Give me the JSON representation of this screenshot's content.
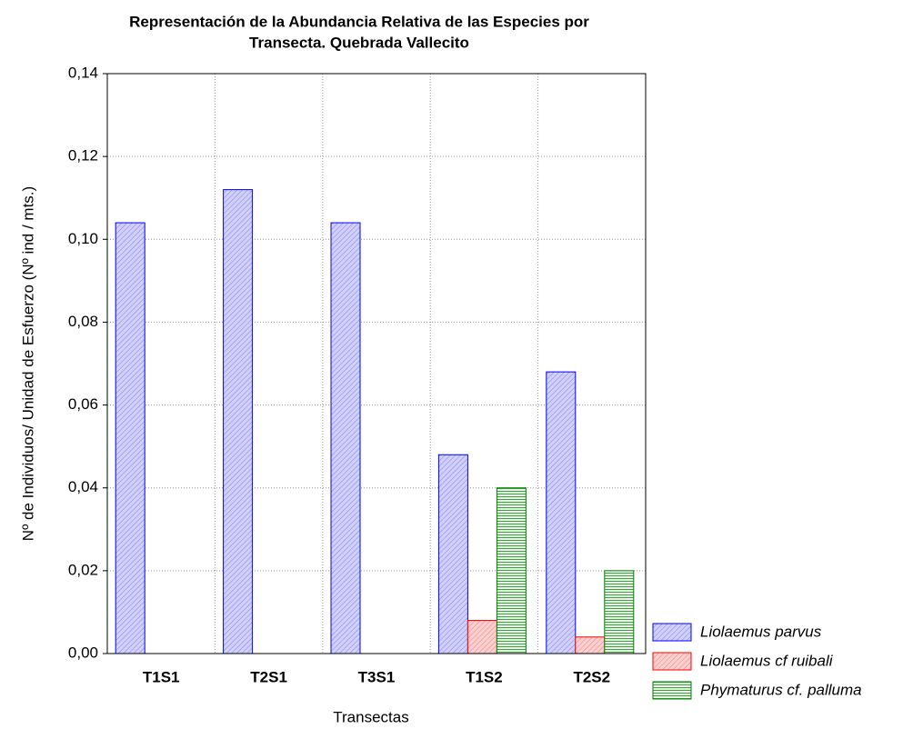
{
  "chart_data": {
    "type": "bar",
    "title": [
      "Representación de la Abundancia Relativa de las Especies por",
      "Transecta. Quebrada Vallecito"
    ],
    "x_label": "Transectas",
    "y_label": "Nº de Individuos/ Unidad de Esfuerzo (Nº ind / mts.)",
    "categories": [
      "T1S1",
      "T2S1",
      "T3S1",
      "T1S2",
      "T2S2"
    ],
    "series": [
      {
        "name": "Liolaemus parvus",
        "color": "#0000ff",
        "values": [
          0.104,
          0.112,
          0.104,
          0.048,
          0.068
        ]
      },
      {
        "name": "Liolaemus cf ruibali",
        "color": "#ff0000",
        "values": [
          0,
          0,
          0,
          0.008,
          0.004
        ]
      },
      {
        "name": "Phymaturus cf. palluma",
        "color": "#008000",
        "values": [
          0,
          0,
          0,
          0.04,
          0.02
        ]
      }
    ],
    "ylim": [
      0,
      0.14
    ],
    "yticks": [
      {
        "value": 0,
        "label": "0,00"
      },
      {
        "value": 0.02,
        "label": "0,02"
      },
      {
        "value": 0.04,
        "label": "0,04"
      },
      {
        "value": 0.06,
        "label": "0,06"
      },
      {
        "value": 0.08,
        "label": "0,08"
      },
      {
        "value": 0.1,
        "label": "0,10"
      },
      {
        "value": 0.12,
        "label": "0,12"
      },
      {
        "value": 0.14,
        "label": "0,14"
      }
    ],
    "grid": true,
    "legend": "bottom-right"
  }
}
